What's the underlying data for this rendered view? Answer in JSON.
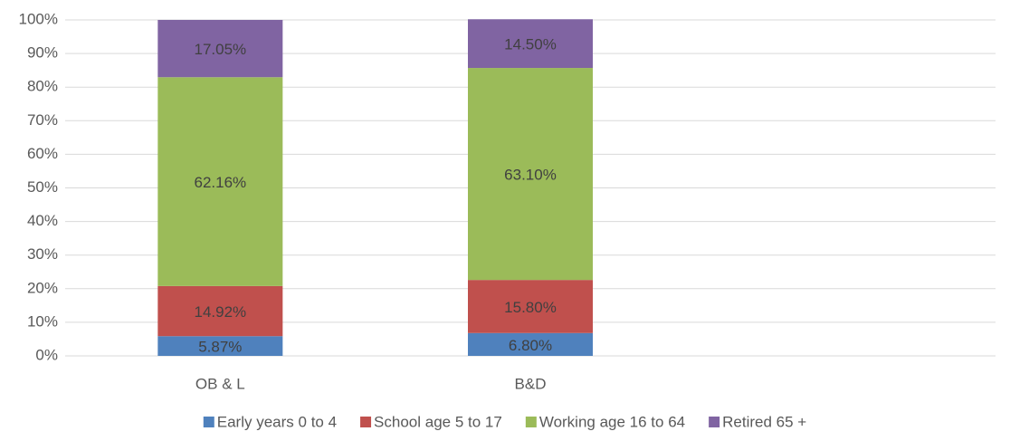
{
  "chart_data": {
    "type": "bar",
    "stacked": true,
    "categories": [
      "OB & L",
      "B&D",
      null
    ],
    "series": [
      {
        "name": "Early years 0 to 4",
        "color": "#4f81bd",
        "values": [
          5.87,
          6.8,
          null
        ],
        "value_labels": [
          "5.87%",
          "6.80%",
          null
        ]
      },
      {
        "name": "School age 5 to 17",
        "color": "#c0504d",
        "values": [
          14.92,
          15.8,
          null
        ],
        "value_labels": [
          "14.92%",
          "15.80%",
          null
        ]
      },
      {
        "name": "Working age 16 to 64",
        "color": "#9bbb59",
        "values": [
          62.16,
          63.1,
          null
        ],
        "value_labels": [
          "62.16%",
          "63.10%",
          null
        ]
      },
      {
        "name": "Retired 65 +",
        "color": "#8064a2",
        "values": [
          17.05,
          14.5,
          null
        ],
        "value_labels": [
          "17.05%",
          "14.50%",
          null
        ]
      }
    ],
    "ylim": [
      0,
      100
    ],
    "yticks": [
      {
        "value": 0,
        "label": "0%"
      },
      {
        "value": 10,
        "label": "10%"
      },
      {
        "value": 20,
        "label": "20%"
      },
      {
        "value": 30,
        "label": "30%"
      },
      {
        "value": 40,
        "label": "40%"
      },
      {
        "value": 50,
        "label": "50%"
      },
      {
        "value": 60,
        "label": "60%"
      },
      {
        "value": 70,
        "label": "70%"
      },
      {
        "value": 80,
        "label": "80%"
      },
      {
        "value": 90,
        "label": "90%"
      },
      {
        "value": 100,
        "label": "100%"
      }
    ],
    "grid": true,
    "legend": "bottom"
  }
}
